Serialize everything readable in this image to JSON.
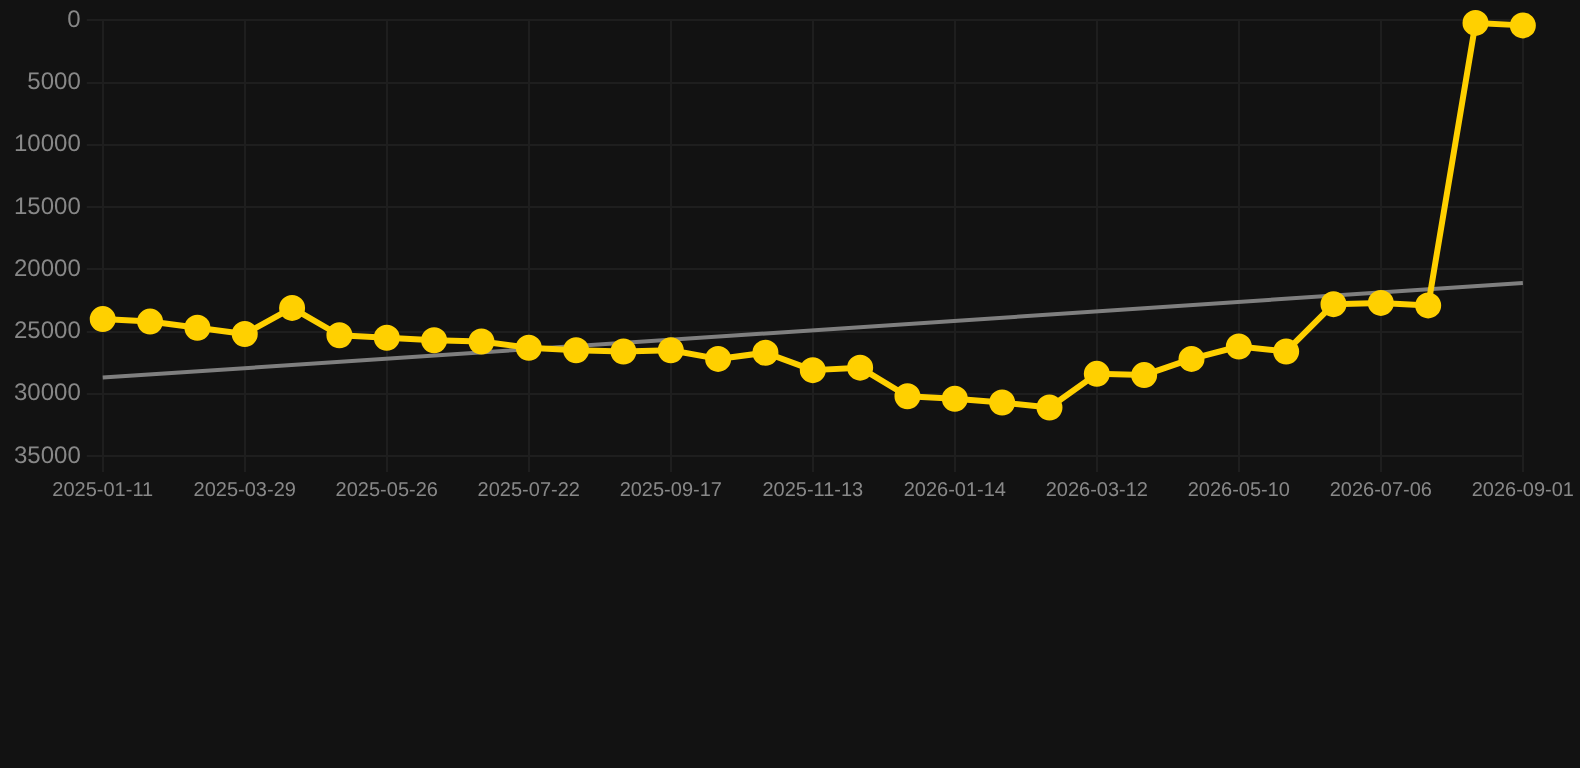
{
  "chart_data": {
    "type": "line",
    "categories": [
      "2025-01-11",
      null,
      null,
      "2025-03-29",
      null,
      null,
      "2025-05-26",
      null,
      null,
      "2025-07-22",
      null,
      null,
      "2025-09-17",
      null,
      null,
      "2025-11-13",
      null,
      null,
      "2026-01-14",
      null,
      null,
      "2026-03-12",
      null,
      null,
      "2026-05-10",
      null,
      null,
      "2026-07-06",
      null,
      null,
      "2026-09-01"
    ],
    "series": [
      {
        "color": "#ffd000",
        "values": [
          24000,
          24200,
          24700,
          25200,
          23100,
          25300,
          25500,
          25700,
          25800,
          26300,
          26500,
          26600,
          26500,
          27200,
          26700,
          28100,
          27900,
          30200,
          30400,
          30700,
          31100,
          28400,
          28500,
          27200,
          26200,
          26600,
          22800,
          22700,
          22900,
          200,
          400
        ]
      },
      {
        "type": "line",
        "color": "#7f7f7f",
        "marker": "none",
        "values": [
          28700,
          null,
          null,
          null,
          null,
          null,
          null,
          null,
          null,
          null,
          null,
          null,
          null,
          null,
          null,
          null,
          null,
          null,
          null,
          null,
          null,
          null,
          null,
          null,
          null,
          null,
          null,
          null,
          null,
          null,
          21100
        ]
      }
    ],
    "ylim": [
      35000,
      0
    ],
    "yticks": [
      0,
      5000,
      10000,
      15000,
      20000,
      25000,
      30000,
      35000
    ],
    "grid": true,
    "legend": false,
    "marker": "circle",
    "line_style": "solid"
  }
}
